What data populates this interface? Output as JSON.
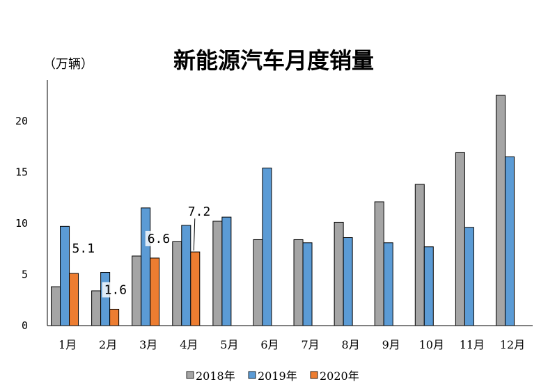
{
  "chart_data": {
    "type": "bar",
    "title": "新能源汽车月度销量",
    "ylabel": "（万辆）",
    "xlabel": "",
    "ylim": [
      0,
      24
    ],
    "yticks": [
      0,
      5,
      10,
      15,
      20
    ],
    "categories": [
      "1月",
      "2月",
      "3月",
      "4月",
      "5月",
      "6月",
      "7月",
      "8月",
      "9月",
      "10月",
      "11月",
      "12月"
    ],
    "series": [
      {
        "name": "2018年",
        "color": "#a5a5a5",
        "values": [
          3.8,
          3.4,
          6.8,
          8.2,
          10.2,
          8.4,
          8.4,
          10.1,
          12.1,
          13.8,
          16.9,
          22.5
        ]
      },
      {
        "name": "2019年",
        "color": "#5b9bd5",
        "values": [
          9.7,
          5.2,
          11.5,
          9.8,
          10.6,
          15.4,
          8.1,
          8.6,
          8.1,
          7.7,
          9.6,
          16.5
        ]
      },
      {
        "name": "2020年",
        "color": "#ed7d31",
        "values": [
          5.1,
          1.6,
          6.6,
          7.2,
          null,
          null,
          null,
          null,
          null,
          null,
          null,
          null
        ]
      }
    ],
    "data_labels": [
      {
        "series": 2,
        "index": 0,
        "text": "5.1"
      },
      {
        "series": 2,
        "index": 1,
        "text": "1.6"
      },
      {
        "series": 2,
        "index": 2,
        "text": "6.6"
      },
      {
        "series": 2,
        "index": 3,
        "text": "7.2"
      }
    ],
    "legend_position": "bottom"
  }
}
